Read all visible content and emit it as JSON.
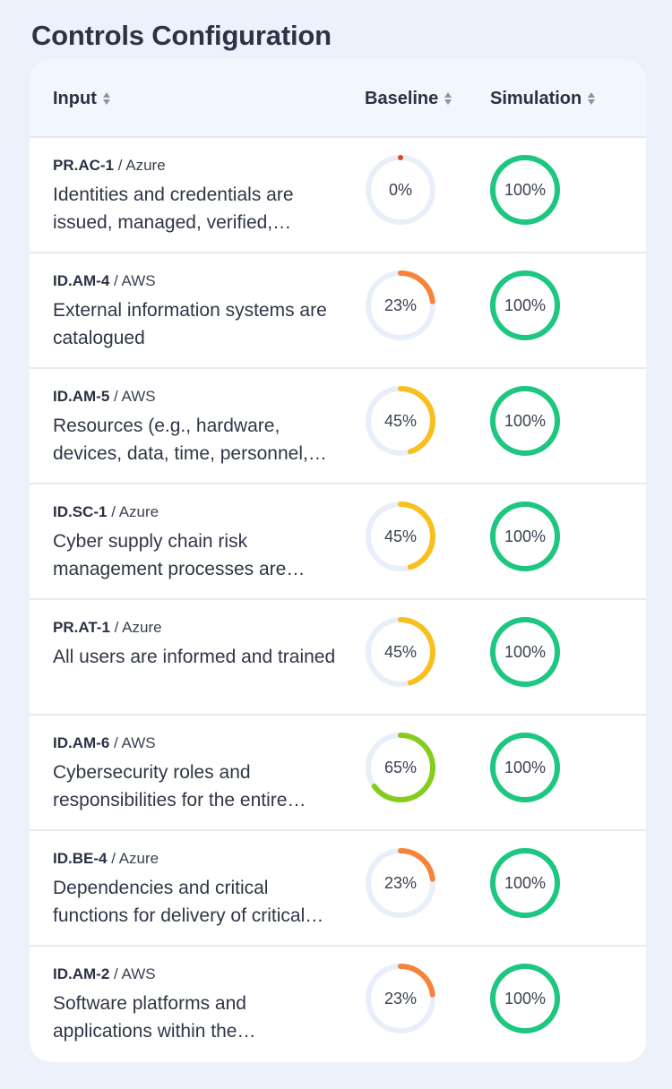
{
  "page": {
    "title": "Controls Configuration"
  },
  "table": {
    "columns": {
      "input": "Input",
      "baseline": "Baseline",
      "simulation": "Simulation"
    },
    "rows": [
      {
        "code": "PR.AC-1",
        "provider": "Azure",
        "description": "Identities and credentials are issued, managed, verified, revoked, and audited for authorized devices, users and processes",
        "baseline": 0,
        "baseline_label": "0%",
        "baseline_color": "#e0452b",
        "simulation": 100,
        "simulation_label": "100%"
      },
      {
        "code": "ID.AM-4",
        "provider": "AWS",
        "description": "External information systems are catalogued",
        "baseline": 23,
        "baseline_label": "23%",
        "baseline_color": "#f5843a",
        "simulation": 100,
        "simulation_label": "100%"
      },
      {
        "code": "ID.AM-5",
        "provider": "AWS",
        "description": "Resources (e.g., hardware, devices, data, time, personnel, and software) are prioritized based on their classification",
        "baseline": 45,
        "baseline_label": "45%",
        "baseline_color": "#f8bf1d",
        "simulation": 100,
        "simulation_label": "100%"
      },
      {
        "code": "ID.SC-1",
        "provider": "Azure",
        "description": "Cyber supply chain risk management processes are identified, established, assessed, managed, and agreed to",
        "baseline": 45,
        "baseline_label": "45%",
        "baseline_color": "#f8bf1d",
        "simulation": 100,
        "simulation_label": "100%"
      },
      {
        "code": "PR.AT-1",
        "provider": "Azure",
        "description": "All users are informed and trained",
        "baseline": 45,
        "baseline_label": "45%",
        "baseline_color": "#f8bf1d",
        "simulation": 100,
        "simulation_label": "100%"
      },
      {
        "code": "ID.AM-6",
        "provider": "AWS",
        "description": "Cybersecurity roles and responsibilities for the entire workforce and third-party stakeholders are established",
        "baseline": 65,
        "baseline_label": "65%",
        "baseline_color": "#86cc1c",
        "simulation": 100,
        "simulation_label": "100%"
      },
      {
        "code": "ID.BE-4",
        "provider": "Azure",
        "description": "Dependencies and critical functions for delivery of critical services are established",
        "baseline": 23,
        "baseline_label": "23%",
        "baseline_color": "#f5843a",
        "simulation": 100,
        "simulation_label": "100%"
      },
      {
        "code": "ID.AM-2",
        "provider": "AWS",
        "description": "Software platforms and applications within the organization are inventoried",
        "baseline": 23,
        "baseline_label": "23%",
        "baseline_color": "#f5843a",
        "simulation": 100,
        "simulation_label": "100%"
      }
    ]
  },
  "colors": {
    "track": "#e9eefb",
    "simulation": "#1ec77f"
  },
  "icons": {
    "sort": "sort-icon"
  }
}
